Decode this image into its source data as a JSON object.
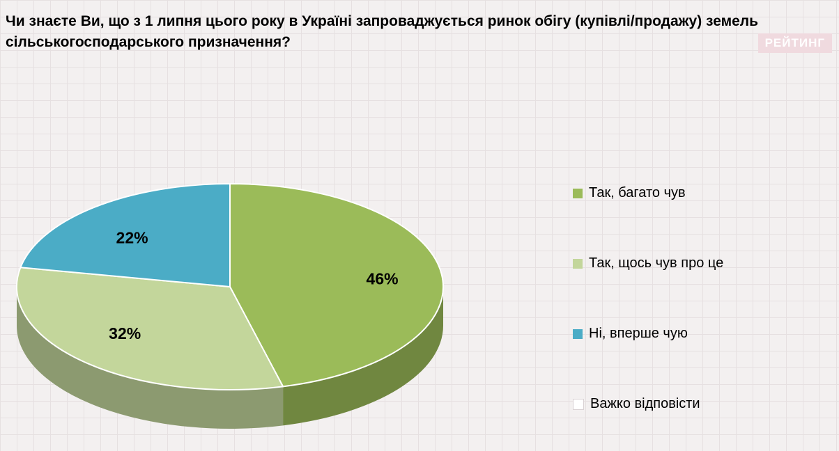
{
  "page": {
    "title": "Чи знаєте Ви, що з 1 липня цього року в Україні запроваджується ринок обігу (купівлі/продажу) земель сільськогосподарського призначення?",
    "logo": "РЕЙТИНГ"
  },
  "chart_data": {
    "type": "pie",
    "effect": "3d",
    "title": "Чи знаєте Ви, що з 1 липня цього року в Україні запроваджується ринок обігу (купівлі/продажу) земель сільськогосподарського призначення?",
    "direction": "clockwise",
    "start_angle_deg": 0,
    "value_suffix": "%",
    "legend_position": "right",
    "slices": [
      {
        "label": "Так, багато чув",
        "value": 46,
        "color": "#9BBB59"
      },
      {
        "label": "Так, щось чув про це",
        "value": 32,
        "color": "#C3D69B"
      },
      {
        "label": "Ні, вперше чую",
        "value": 22,
        "color": "#4BACC6"
      },
      {
        "label": "Важко відповісти",
        "value": 0,
        "color": "#FFFFFF"
      }
    ],
    "background": {
      "base": "#F3F0F0",
      "grid_line": "#E6E0E1"
    }
  }
}
